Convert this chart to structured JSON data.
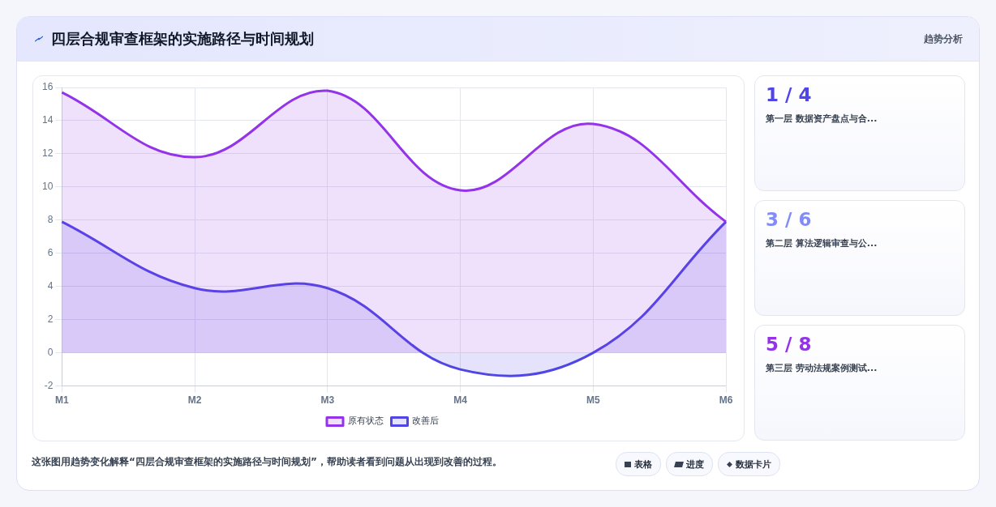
{
  "chart_data": {
    "type": "area",
    "title": "四层合规审查框架的实施路径与时间规划",
    "categories": [
      "M1",
      "M2",
      "M3",
      "M4",
      "M5",
      "M6"
    ],
    "series": [
      {
        "name": "原有状态",
        "color": "#9333ea",
        "values": [
          15.7,
          11.8,
          15.8,
          9.8,
          13.8,
          7.9
        ]
      },
      {
        "name": "改善后",
        "color": "#4f46e5",
        "values": [
          7.9,
          3.9,
          3.9,
          -1,
          0,
          7.9
        ]
      }
    ],
    "ylim": [
      -2,
      16
    ],
    "yticks": [
      -2,
      0,
      2,
      4,
      6,
      8,
      10,
      12,
      14,
      16
    ],
    "grid": true,
    "legend": "bottom",
    "annotations": [
      "趋势分析",
      "1 / 4",
      "第一层 数据资产盘点与合...",
      "3 / 6",
      "第二层 算法逻辑审查与公...",
      "5 / 8",
      "第三层 劳动法规案例测试...",
      "这张图用趋势变化解释“四层合规审查框架的实施路径与时间规划”，帮助读者看到问题从出现到改善的过程。",
      "表格",
      "进度",
      "数据卡片"
    ]
  }
}
